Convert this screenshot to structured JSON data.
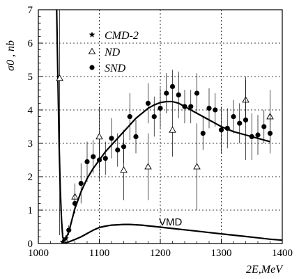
{
  "chart_data": {
    "type": "scatter",
    "xlabel": "2E,MeV",
    "ylabel": "σ0 , nb",
    "xlim": [
      1000,
      1400
    ],
    "ylim": [
      0,
      7
    ],
    "x_ticks": [
      1000,
      1100,
      1200,
      1300,
      1400
    ],
    "y_ticks": [
      0,
      1,
      2,
      3,
      4,
      5,
      6,
      7
    ],
    "grid": true,
    "legend_position": "top-left",
    "annotation": "VMD",
    "series": [
      {
        "name": "CMD-2",
        "marker": "star",
        "points": [
          {
            "x": 1040,
            "y": 0.05,
            "err": 0.05
          },
          {
            "x": 1045,
            "y": 0.15,
            "err": 0.1
          }
        ]
      },
      {
        "name": "ND",
        "marker": "triangle",
        "points": [
          {
            "x": 1035,
            "y": 4.95,
            "err": 4.7
          },
          {
            "x": 1060,
            "y": 1.4,
            "err": 0.4
          },
          {
            "x": 1100,
            "y": 3.2,
            "err": 0.9
          },
          {
            "x": 1140,
            "y": 2.2,
            "err": 0.9
          },
          {
            "x": 1180,
            "y": 2.3,
            "err": 1.0
          },
          {
            "x": 1220,
            "y": 3.4,
            "err": 0.8
          },
          {
            "x": 1260,
            "y": 2.3,
            "err": 1.3
          },
          {
            "x": 1340,
            "y": 4.3,
            "err": 0.7
          },
          {
            "x": 1380,
            "y": 3.8,
            "err": 0.8
          }
        ]
      },
      {
        "name": "SND",
        "marker": "circle",
        "points": [
          {
            "x": 1050,
            "y": 0.4,
            "err": 0.15
          },
          {
            "x": 1060,
            "y": 1.2,
            "err": 0.3
          },
          {
            "x": 1070,
            "y": 1.8,
            "err": 0.6
          },
          {
            "x": 1080,
            "y": 2.45,
            "err": 0.6
          },
          {
            "x": 1090,
            "y": 2.6,
            "err": 0.5
          },
          {
            "x": 1100,
            "y": 2.5,
            "err": 0.6
          },
          {
            "x": 1110,
            "y": 2.55,
            "err": 0.5
          },
          {
            "x": 1120,
            "y": 3.15,
            "err": 0.6
          },
          {
            "x": 1130,
            "y": 2.8,
            "err": 0.5
          },
          {
            "x": 1140,
            "y": 2.9,
            "err": 0.5
          },
          {
            "x": 1150,
            "y": 3.8,
            "err": 0.7
          },
          {
            "x": 1160,
            "y": 3.2,
            "err": 0.5
          },
          {
            "x": 1180,
            "y": 4.2,
            "err": 0.6
          },
          {
            "x": 1190,
            "y": 3.8,
            "err": 0.6
          },
          {
            "x": 1200,
            "y": 4.05,
            "err": 0.6
          },
          {
            "x": 1210,
            "y": 4.5,
            "err": 0.6
          },
          {
            "x": 1220,
            "y": 4.7,
            "err": 0.5
          },
          {
            "x": 1230,
            "y": 4.45,
            "err": 0.7
          },
          {
            "x": 1240,
            "y": 4.1,
            "err": 0.5
          },
          {
            "x": 1250,
            "y": 4.1,
            "err": 0.5
          },
          {
            "x": 1260,
            "y": 4.5,
            "err": 0.6
          },
          {
            "x": 1270,
            "y": 3.3,
            "err": 0.5
          },
          {
            "x": 1280,
            "y": 4.05,
            "err": 0.6
          },
          {
            "x": 1290,
            "y": 4.0,
            "err": 0.5
          },
          {
            "x": 1300,
            "y": 3.4,
            "err": 0.7
          },
          {
            "x": 1310,
            "y": 3.45,
            "err": 0.6
          },
          {
            "x": 1320,
            "y": 3.8,
            "err": 0.5
          },
          {
            "x": 1330,
            "y": 3.6,
            "err": 0.6
          },
          {
            "x": 1340,
            "y": 3.7,
            "err": 1.2
          },
          {
            "x": 1350,
            "y": 3.2,
            "err": 0.7
          },
          {
            "x": 1360,
            "y": 3.25,
            "err": 0.6
          },
          {
            "x": 1370,
            "y": 3.5,
            "err": 0.5
          },
          {
            "x": 1380,
            "y": 3.3,
            "err": 0.6
          }
        ]
      }
    ],
    "curves": [
      {
        "name": "fit",
        "points": [
          [
            1030,
            7.0
          ],
          [
            1032,
            5.0
          ],
          [
            1034,
            3.0
          ],
          [
            1036,
            1.6
          ],
          [
            1038,
            0.7
          ],
          [
            1040,
            0.2
          ],
          [
            1042,
            0.08
          ],
          [
            1045,
            0.15
          ],
          [
            1050,
            0.35
          ],
          [
            1055,
            0.7
          ],
          [
            1060,
            1.05
          ],
          [
            1070,
            1.55
          ],
          [
            1080,
            1.95
          ],
          [
            1090,
            2.25
          ],
          [
            1100,
            2.5
          ],
          [
            1110,
            2.75
          ],
          [
            1120,
            2.95
          ],
          [
            1130,
            3.15
          ],
          [
            1140,
            3.35
          ],
          [
            1150,
            3.55
          ],
          [
            1160,
            3.75
          ],
          [
            1170,
            3.9
          ],
          [
            1180,
            4.05
          ],
          [
            1190,
            4.15
          ],
          [
            1200,
            4.22
          ],
          [
            1210,
            4.25
          ],
          [
            1220,
            4.25
          ],
          [
            1230,
            4.2
          ],
          [
            1240,
            4.1
          ],
          [
            1250,
            4.0
          ],
          [
            1260,
            3.9
          ],
          [
            1270,
            3.8
          ],
          [
            1280,
            3.7
          ],
          [
            1290,
            3.6
          ],
          [
            1300,
            3.5
          ],
          [
            1320,
            3.35
          ],
          [
            1340,
            3.25
          ],
          [
            1360,
            3.15
          ],
          [
            1380,
            3.05
          ]
        ]
      },
      {
        "name": "VMD",
        "points": [
          [
            1040,
            0.0
          ],
          [
            1050,
            0.05
          ],
          [
            1060,
            0.12
          ],
          [
            1070,
            0.2
          ],
          [
            1080,
            0.3
          ],
          [
            1090,
            0.4
          ],
          [
            1100,
            0.48
          ],
          [
            1110,
            0.52
          ],
          [
            1120,
            0.55
          ],
          [
            1130,
            0.56
          ],
          [
            1140,
            0.57
          ],
          [
            1150,
            0.57
          ],
          [
            1160,
            0.56
          ],
          [
            1170,
            0.55
          ],
          [
            1180,
            0.53
          ],
          [
            1190,
            0.51
          ],
          [
            1200,
            0.49
          ],
          [
            1220,
            0.45
          ],
          [
            1240,
            0.41
          ],
          [
            1260,
            0.37
          ],
          [
            1280,
            0.33
          ],
          [
            1300,
            0.29
          ],
          [
            1320,
            0.25
          ],
          [
            1340,
            0.21
          ],
          [
            1360,
            0.17
          ],
          [
            1380,
            0.13
          ],
          [
            1400,
            0.1
          ]
        ]
      }
    ]
  }
}
